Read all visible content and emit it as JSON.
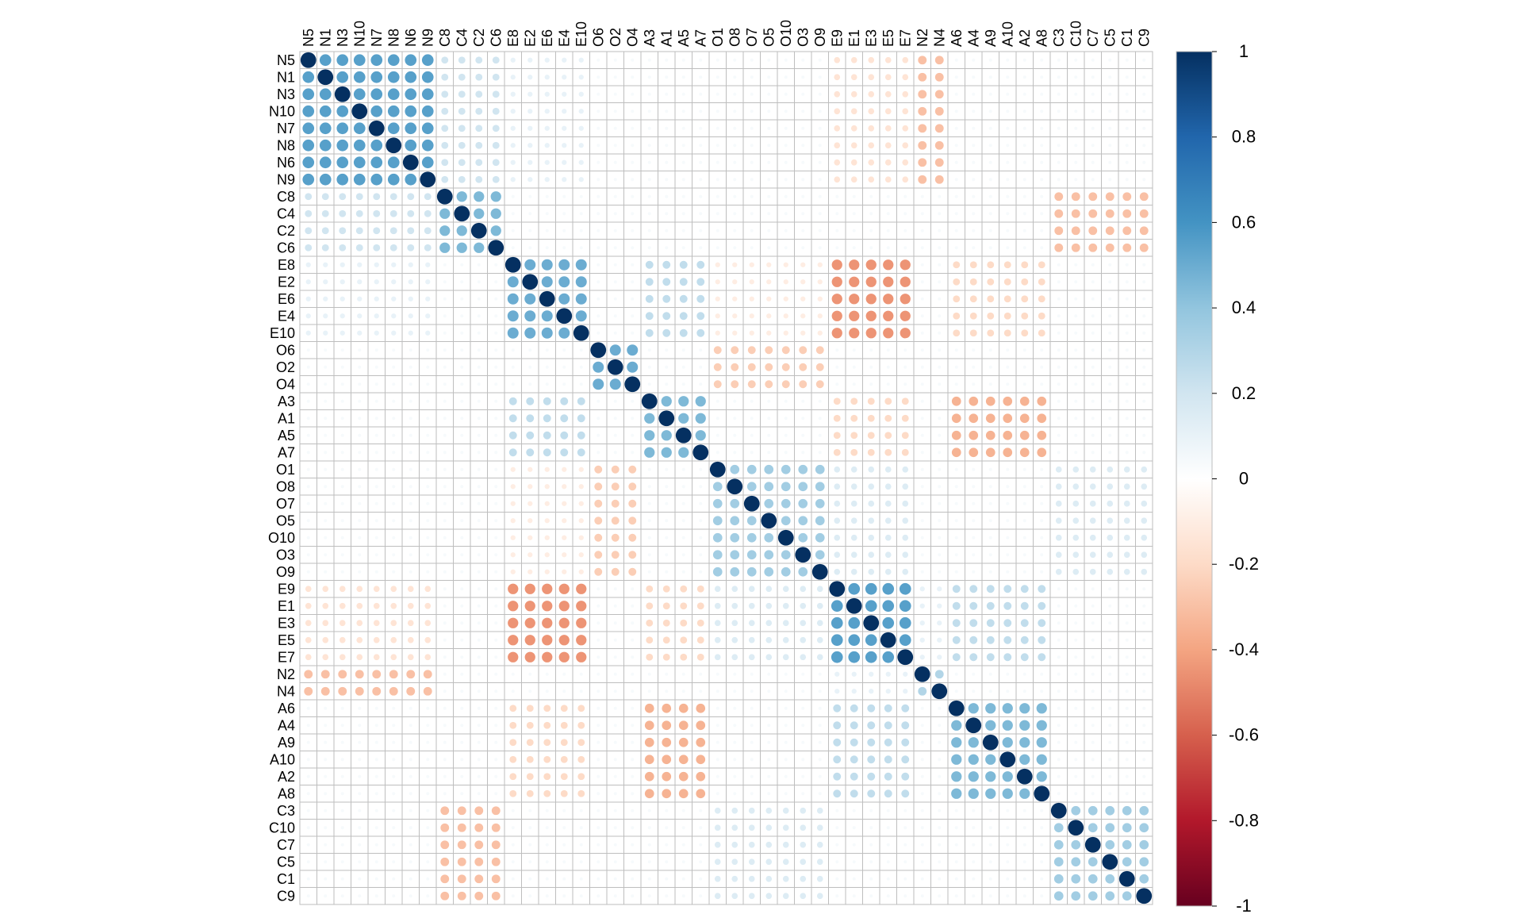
{
  "chart_data": {
    "type": "heatmap",
    "variables": [
      "N5",
      "N1",
      "N3",
      "N10",
      "N7",
      "N8",
      "N6",
      "N9",
      "C8",
      "C4",
      "C2",
      "C6",
      "E8",
      "E2",
      "E6",
      "E4",
      "E10",
      "O6",
      "O2",
      "O4",
      "A3",
      "A1",
      "A5",
      "A7",
      "O1",
      "O8",
      "O7",
      "O5",
      "O10",
      "O3",
      "O9",
      "E9",
      "E1",
      "E3",
      "E5",
      "E7",
      "N2",
      "N4",
      "A6",
      "A4",
      "A9",
      "A10",
      "A2",
      "A8",
      "C3",
      "C10",
      "C7",
      "C5",
      "C1",
      "C9"
    ],
    "colorbar": {
      "range": [
        -1,
        1
      ],
      "tick_labels": [
        "1",
        "0.8",
        "0.6",
        "0.4",
        "0.2",
        "0",
        "-0.2",
        "-0.4",
        "-0.6",
        "-0.8",
        "-1"
      ],
      "tick_values": [
        1,
        0.8,
        0.6,
        0.4,
        0.2,
        0,
        -0.2,
        -0.4,
        -0.6,
        -0.8,
        -1
      ],
      "colors": [
        "#67001F",
        "#B2182B",
        "#D6604D",
        "#F4A582",
        "#FDDBC7",
        "#FFFFFF",
        "#D1E5F0",
        "#92C5DE",
        "#4393C3",
        "#2166AC",
        "#053061"
      ]
    },
    "correlation_blocks": [
      {
        "rows": [
          0,
          8
        ],
        "cols": [
          0,
          8
        ],
        "value": 0.55
      },
      {
        "rows": [
          8,
          12
        ],
        "cols": [
          8,
          12
        ],
        "value": 0.45
      },
      {
        "rows": [
          12,
          17
        ],
        "cols": [
          12,
          17
        ],
        "value": 0.5
      },
      {
        "rows": [
          17,
          20
        ],
        "cols": [
          17,
          20
        ],
        "value": 0.5
      },
      {
        "rows": [
          20,
          24
        ],
        "cols": [
          20,
          24
        ],
        "value": 0.45
      },
      {
        "rows": [
          24,
          31
        ],
        "cols": [
          24,
          31
        ],
        "value": 0.35
      },
      {
        "rows": [
          31,
          36
        ],
        "cols": [
          31,
          36
        ],
        "value": 0.55
      },
      {
        "rows": [
          36,
          38
        ],
        "cols": [
          36,
          38
        ],
        "value": 0.3
      },
      {
        "rows": [
          38,
          44
        ],
        "cols": [
          38,
          44
        ],
        "value": 0.45
      },
      {
        "rows": [
          44,
          50
        ],
        "cols": [
          44,
          50
        ],
        "value": 0.35
      },
      {
        "rows": [
          0,
          8
        ],
        "cols": [
          8,
          12
        ],
        "value": 0.2
      },
      {
        "rows": [
          0,
          8
        ],
        "cols": [
          12,
          17
        ],
        "value": 0.1
      },
      {
        "rows": [
          0,
          8
        ],
        "cols": [
          36,
          38
        ],
        "value": -0.3
      },
      {
        "rows": [
          0,
          8
        ],
        "cols": [
          31,
          36
        ],
        "value": -0.15
      },
      {
        "rows": [
          8,
          12
        ],
        "cols": [
          44,
          50
        ],
        "value": -0.3
      },
      {
        "rows": [
          12,
          17
        ],
        "cols": [
          31,
          36
        ],
        "value": -0.45
      },
      {
        "rows": [
          12,
          17
        ],
        "cols": [
          20,
          24
        ],
        "value": 0.25
      },
      {
        "rows": [
          12,
          17
        ],
        "cols": [
          38,
          44
        ],
        "value": -0.2
      },
      {
        "rows": [
          12,
          17
        ],
        "cols": [
          24,
          31
        ],
        "value": -0.1
      },
      {
        "rows": [
          17,
          20
        ],
        "cols": [
          24,
          31
        ],
        "value": -0.25
      },
      {
        "rows": [
          20,
          24
        ],
        "cols": [
          38,
          44
        ],
        "value": -0.35
      },
      {
        "rows": [
          20,
          24
        ],
        "cols": [
          31,
          36
        ],
        "value": -0.2
      },
      {
        "rows": [
          24,
          31
        ],
        "cols": [
          31,
          36
        ],
        "value": 0.15
      },
      {
        "rows": [
          24,
          31
        ],
        "cols": [
          44,
          50
        ],
        "value": 0.15
      },
      {
        "rows": [
          31,
          36
        ],
        "cols": [
          38,
          44
        ],
        "value": 0.25
      },
      {
        "rows": [
          31,
          36
        ],
        "cols": [
          36,
          38
        ],
        "value": 0.1
      }
    ]
  }
}
